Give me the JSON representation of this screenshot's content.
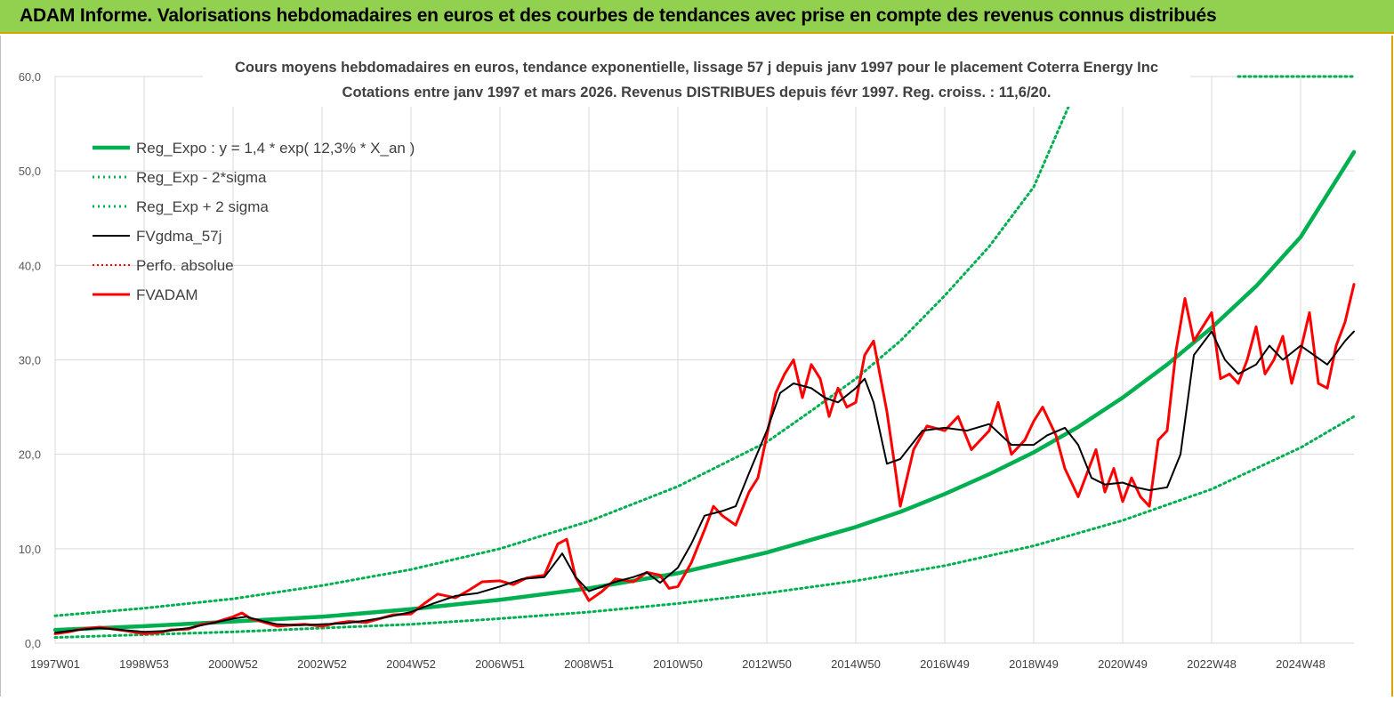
{
  "banner": {
    "title": "ADAM Informe. Valorisations hebdomadaires en euros et des courbes de tendances avec prise en compte des revenus connus distribués"
  },
  "chart_data": {
    "type": "line",
    "title": "Cours moyens hebdomadaires en euros, tendance exponentielle, lissage 57 j depuis janv 1997 pour le placement Coterra Energy Inc",
    "subtitle": "Cotations entre janv 1997 et mars 2026. Revenus DISTRIBUES depuis févr 1997. Reg. croiss. : 11,6/20.",
    "xlabel": "",
    "ylabel": "",
    "xlim": [
      1997.0,
      2026.2
    ],
    "ylim": [
      0,
      60
    ],
    "y_ticks": [
      "0,0",
      "10,0",
      "20,0",
      "30,0",
      "40,0",
      "50,0",
      "60,0"
    ],
    "x_ticks": [
      {
        "label": "1997W01",
        "x": 1997.0
      },
      {
        "label": "1998W53",
        "x": 1999.0
      },
      {
        "label": "2000W52",
        "x": 2001.0
      },
      {
        "label": "2002W52",
        "x": 2003.0
      },
      {
        "label": "2004W52",
        "x": 2005.0
      },
      {
        "label": "2006W51",
        "x": 2007.0
      },
      {
        "label": "2008W51",
        "x": 2009.0
      },
      {
        "label": "2010W50",
        "x": 2011.0
      },
      {
        "label": "2012W50",
        "x": 2013.0
      },
      {
        "label": "2014W50",
        "x": 2015.0
      },
      {
        "label": "2016W49",
        "x": 2017.0
      },
      {
        "label": "2018W49",
        "x": 2019.0
      },
      {
        "label": "2020W49",
        "x": 2021.0
      },
      {
        "label": "2022W48",
        "x": 2023.0
      },
      {
        "label": "2024W48",
        "x": 2025.0
      }
    ],
    "grid": true,
    "legend_position": "top-left",
    "colors": {
      "reg_expo": "#00b050",
      "sigma": "#00b050",
      "fvgdma": "#000000",
      "perfo": "#ff0000",
      "fvadam": "#ff0000",
      "grid": "#d9d9d9"
    },
    "series": [
      {
        "name": "Reg_Expo : y = 1,4 * exp( 12,3% *  X_an )",
        "style": "solid-thick",
        "x": [
          1997.0,
          1999.0,
          2001.0,
          2003.0,
          2005.0,
          2007.0,
          2009.0,
          2011.0,
          2013.0,
          2015.0,
          2016.0,
          2017.0,
          2018.0,
          2019.0,
          2020.0,
          2021.0,
          2022.0,
          2023.0,
          2024.0,
          2025.0,
          2026.2
        ],
        "y": [
          1.4,
          1.8,
          2.3,
          2.8,
          3.6,
          4.6,
          5.8,
          7.4,
          9.6,
          12.3,
          13.9,
          15.8,
          17.9,
          20.2,
          22.9,
          26.0,
          29.5,
          33.4,
          37.8,
          43.0,
          52.0
        ]
      },
      {
        "name": "Reg_Exp - 2*sigma",
        "style": "dotted",
        "x": [
          1997.0,
          1999.0,
          2001.0,
          2003.0,
          2005.0,
          2007.0,
          2009.0,
          2011.0,
          2013.0,
          2015.0,
          2017.0,
          2019.0,
          2021.0,
          2023.0,
          2025.0,
          2026.2
        ],
        "y": [
          0.6,
          0.9,
          1.2,
          1.6,
          2.0,
          2.6,
          3.3,
          4.2,
          5.3,
          6.6,
          8.2,
          10.3,
          13.0,
          16.3,
          20.7,
          24.0
        ]
      },
      {
        "name": "Reg_Exp + 2 sigma",
        "style": "dotted",
        "x": [
          1997.0,
          1999.0,
          2001.0,
          2003.0,
          2005.0,
          2007.0,
          2009.0,
          2011.0,
          2013.0,
          2014.0,
          2015.0,
          2016.0,
          2017.0,
          2018.0,
          2019.0,
          2019.8
        ],
        "y": [
          2.9,
          3.7,
          4.7,
          6.1,
          7.8,
          10.0,
          12.9,
          16.6,
          21.3,
          24.6,
          28.0,
          32.0,
          36.8,
          42.0,
          48.3,
          57.0
        ],
        "extra_segment": {
          "x": [
            2023.6,
            2026.2
          ],
          "y": [
            60.0,
            60.0
          ]
        }
      },
      {
        "name": "FVgdma_57j",
        "style": "solid",
        "x": [
          1997.0,
          1997.5,
          1998.0,
          1998.5,
          1999.0,
          1999.5,
          2000.0,
          2000.5,
          2001.0,
          2001.3,
          2001.7,
          2002.0,
          2002.5,
          2003.0,
          2003.5,
          2004.0,
          2004.5,
          2005.0,
          2005.5,
          2006.0,
          2006.5,
          2007.0,
          2007.5,
          2008.0,
          2008.4,
          2008.7,
          2009.0,
          2009.3,
          2009.6,
          2010.0,
          2010.3,
          2010.6,
          2011.0,
          2011.3,
          2011.6,
          2012.0,
          2012.3,
          2012.6,
          2013.0,
          2013.3,
          2013.6,
          2014.0,
          2014.3,
          2014.6,
          2015.0,
          2015.2,
          2015.4,
          2015.7,
          2016.0,
          2016.5,
          2017.0,
          2017.5,
          2018.0,
          2018.5,
          2019.0,
          2019.3,
          2019.7,
          2020.0,
          2020.3,
          2020.6,
          2021.0,
          2021.3,
          2021.6,
          2022.0,
          2022.3,
          2022.6,
          2023.0,
          2023.3,
          2023.6,
          2024.0,
          2024.3,
          2024.6,
          2025.0,
          2025.3,
          2025.6,
          2026.0,
          2026.2
        ],
        "y": [
          1.1,
          1.4,
          1.6,
          1.4,
          1.2,
          1.3,
          1.6,
          2.1,
          2.6,
          2.8,
          2.3,
          2.0,
          1.9,
          2.0,
          2.1,
          2.4,
          2.8,
          3.3,
          4.2,
          5.0,
          5.3,
          6.0,
          6.8,
          7.0,
          9.5,
          7.0,
          5.5,
          6.0,
          6.5,
          7.0,
          7.5,
          6.4,
          8.0,
          10.5,
          13.5,
          14.0,
          14.5,
          18.0,
          22.5,
          26.5,
          27.5,
          27.0,
          26.0,
          25.5,
          27.0,
          28.0,
          25.5,
          19.0,
          19.5,
          22.5,
          22.8,
          22.5,
          23.2,
          21.0,
          21.0,
          22.0,
          22.8,
          21.0,
          17.5,
          16.8,
          17.0,
          16.5,
          16.2,
          16.5,
          20.0,
          30.5,
          33.0,
          30.0,
          28.5,
          29.5,
          31.5,
          30.0,
          31.5,
          30.5,
          29.5,
          32.0,
          33.0
        ]
      },
      {
        "name": "Perfo. absolue",
        "style": "dotted"
      },
      {
        "name": "FVADAM",
        "style": "solid-thick",
        "x": [
          1997.0,
          1997.3,
          1997.6,
          1998.0,
          1998.3,
          1998.6,
          1999.0,
          1999.3,
          1999.6,
          2000.0,
          2000.3,
          2000.6,
          2001.0,
          2001.2,
          2001.4,
          2001.7,
          2002.0,
          2002.3,
          2002.6,
          2003.0,
          2003.3,
          2003.6,
          2004.0,
          2004.3,
          2004.6,
          2005.0,
          2005.3,
          2005.6,
          2006.0,
          2006.3,
          2006.6,
          2007.0,
          2007.3,
          2007.6,
          2008.0,
          2008.3,
          2008.5,
          2008.7,
          2009.0,
          2009.3,
          2009.6,
          2010.0,
          2010.3,
          2010.6,
          2010.8,
          2011.0,
          2011.3,
          2011.6,
          2011.8,
          2012.0,
          2012.3,
          2012.6,
          2012.8,
          2013.0,
          2013.2,
          2013.4,
          2013.6,
          2013.8,
          2014.0,
          2014.2,
          2014.4,
          2014.6,
          2014.8,
          2015.0,
          2015.2,
          2015.4,
          2015.6,
          2015.7,
          2015.9,
          2016.0,
          2016.3,
          2016.6,
          2017.0,
          2017.3,
          2017.6,
          2018.0,
          2018.2,
          2018.5,
          2018.8,
          2019.0,
          2019.2,
          2019.5,
          2019.7,
          2020.0,
          2020.2,
          2020.4,
          2020.6,
          2020.8,
          2021.0,
          2021.2,
          2021.4,
          2021.6,
          2021.8,
          2022.0,
          2022.2,
          2022.4,
          2022.6,
          2022.8,
          2023.0,
          2023.2,
          2023.4,
          2023.6,
          2023.8,
          2024.0,
          2024.2,
          2024.4,
          2024.6,
          2024.8,
          2025.0,
          2025.2,
          2025.4,
          2025.6,
          2025.8,
          2026.0,
          2026.2
        ],
        "y": [
          1.0,
          1.2,
          1.5,
          1.7,
          1.5,
          1.3,
          1.0,
          1.1,
          1.4,
          1.5,
          2.0,
          2.2,
          2.8,
          3.2,
          2.6,
          2.2,
          1.8,
          1.9,
          2.0,
          1.8,
          2.1,
          2.3,
          2.2,
          2.6,
          3.0,
          3.1,
          4.2,
          5.2,
          4.8,
          5.6,
          6.5,
          6.6,
          6.2,
          6.9,
          7.2,
          10.5,
          11.0,
          7.0,
          4.5,
          5.5,
          6.8,
          6.5,
          7.5,
          7.2,
          5.8,
          6.0,
          8.5,
          12.0,
          14.5,
          13.5,
          12.5,
          16.0,
          17.5,
          22.0,
          26.5,
          28.5,
          30.0,
          26.0,
          29.5,
          28.0,
          24.0,
          27.0,
          25.0,
          25.5,
          30.5,
          32.0,
          27.0,
          24.5,
          18.0,
          14.5,
          20.5,
          23.0,
          22.5,
          24.0,
          20.5,
          22.5,
          25.5,
          20.0,
          21.5,
          23.5,
          25.0,
          22.0,
          18.5,
          15.5,
          18.0,
          20.5,
          16.0,
          18.5,
          15.0,
          17.5,
          15.5,
          14.5,
          21.5,
          22.5,
          31.0,
          36.5,
          32.0,
          33.5,
          35.0,
          28.0,
          28.5,
          27.5,
          30.0,
          33.5,
          28.5,
          30.0,
          32.5,
          27.5,
          31.0,
          35.0,
          27.5,
          27.0,
          31.5,
          34.0,
          38.0
        ]
      }
    ]
  }
}
